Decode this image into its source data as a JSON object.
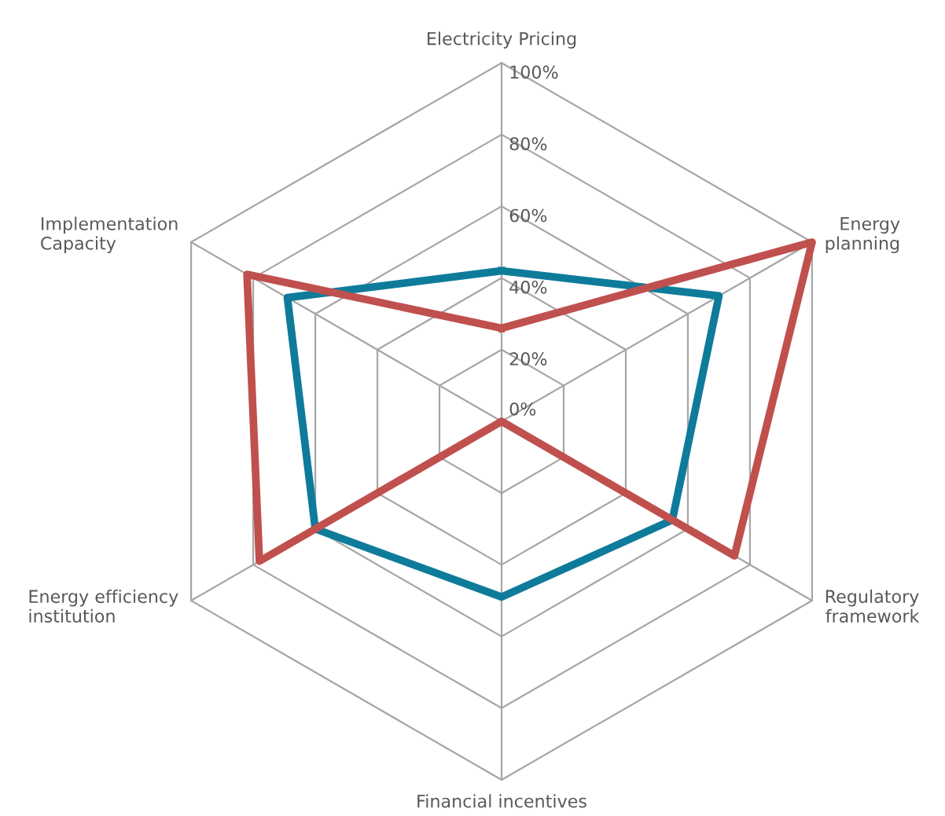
{
  "chart_data": {
    "type": "radar",
    "categories": [
      "Electricity Pricing",
      "Energy\nplanning",
      "Regulatory\nframework",
      "Financial incentives",
      "Energy efficiency\ninstitution",
      "Implementation\nCapacity"
    ],
    "series": [
      {
        "color": "#0f7b9b",
        "values": [
          42,
          70,
          55,
          49,
          60,
          69
        ]
      },
      {
        "color": "#c0504d",
        "values": [
          26,
          100,
          75,
          0,
          78,
          82
        ]
      }
    ],
    "ylim": [
      0,
      100
    ],
    "yticks": [
      {
        "value": 0,
        "label": "0%"
      },
      {
        "value": 20,
        "label": "20%"
      },
      {
        "value": 40,
        "label": "40%"
      },
      {
        "value": 60,
        "label": "60%"
      },
      {
        "value": 80,
        "label": "80%"
      },
      {
        "value": 100,
        "label": "100%"
      }
    ],
    "grid": true,
    "marker": "none",
    "line_style": "solid"
  }
}
